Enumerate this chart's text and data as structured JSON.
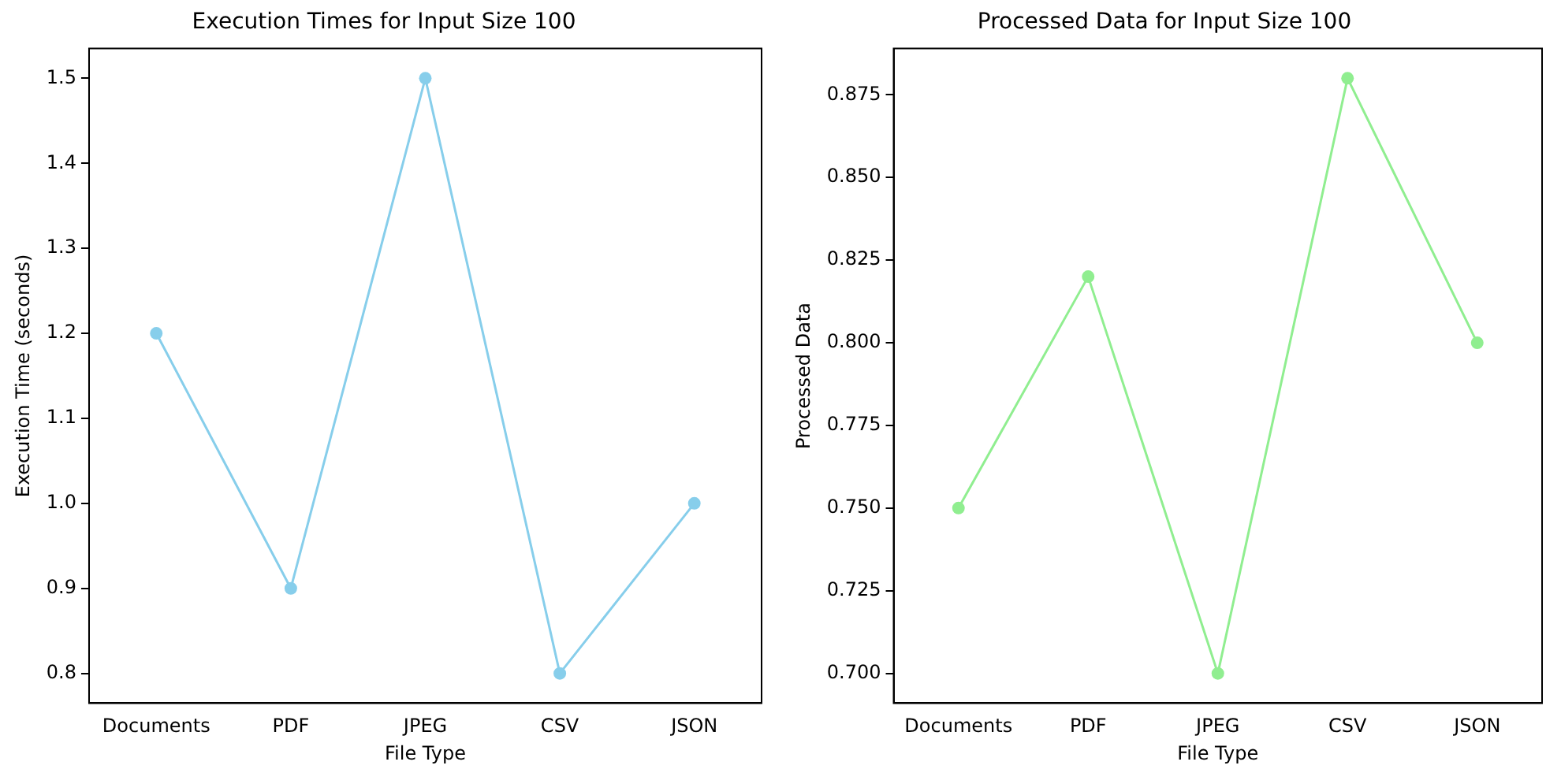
{
  "chart_data": [
    {
      "type": "line",
      "title": "Execution Times for Input Size 100",
      "xlabel": "File Type",
      "ylabel": "Execution Time (seconds)",
      "categories": [
        "Documents",
        "PDF",
        "JPEG",
        "CSV",
        "JSON"
      ],
      "series": [
        {
          "color": "#87ceeb",
          "values": [
            1.2,
            0.9,
            1.5,
            0.8,
            1.0
          ]
        }
      ],
      "ylim": [
        0.765,
        1.535
      ],
      "yticks": [
        {
          "value": 0.8,
          "label": "0.8"
        },
        {
          "value": 0.9,
          "label": "0.9"
        },
        {
          "value": 1.0,
          "label": "1.0"
        },
        {
          "value": 1.1,
          "label": "1.1"
        },
        {
          "value": 1.2,
          "label": "1.2"
        },
        {
          "value": 1.3,
          "label": "1.3"
        },
        {
          "value": 1.4,
          "label": "1.4"
        },
        {
          "value": 1.5,
          "label": "1.5"
        }
      ],
      "grid": false,
      "legend": false,
      "marker": "circle",
      "line_style": "solid"
    },
    {
      "type": "line",
      "title": "Processed Data for Input Size 100",
      "xlabel": "File Type",
      "ylabel": "Processed Data",
      "categories": [
        "Documents",
        "PDF",
        "JPEG",
        "CSV",
        "JSON"
      ],
      "series": [
        {
          "color": "#90ee90",
          "values": [
            0.75,
            0.82,
            0.7,
            0.88,
            0.8
          ]
        }
      ],
      "ylim": [
        0.691,
        0.889
      ],
      "yticks": [
        {
          "value": 0.7,
          "label": "0.700"
        },
        {
          "value": 0.725,
          "label": "0.725"
        },
        {
          "value": 0.75,
          "label": "0.750"
        },
        {
          "value": 0.775,
          "label": "0.775"
        },
        {
          "value": 0.8,
          "label": "0.800"
        },
        {
          "value": 0.825,
          "label": "0.825"
        },
        {
          "value": 0.85,
          "label": "0.850"
        },
        {
          "value": 0.875,
          "label": "0.875"
        }
      ],
      "grid": false,
      "legend": false,
      "marker": "circle",
      "line_style": "solid"
    }
  ]
}
